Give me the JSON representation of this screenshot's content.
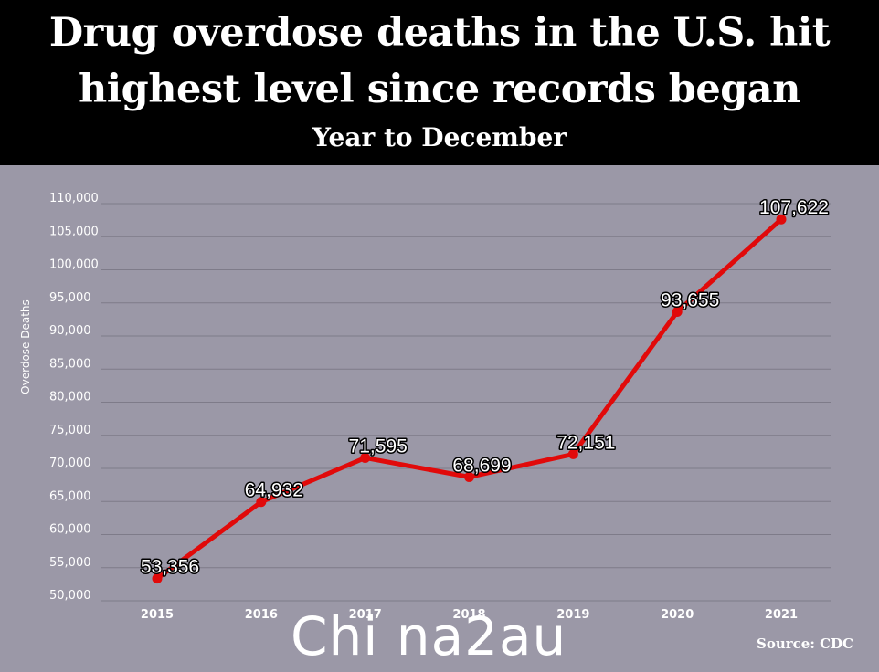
{
  "header": {
    "title_line1": "Drug overdose deaths in the U.S. hit",
    "title_line2": "highest level since records began",
    "subtitle": "Year to December"
  },
  "chart_data": {
    "type": "line",
    "x": [
      "2015",
      "2016",
      "2017",
      "2018",
      "2019",
      "2020",
      "2021"
    ],
    "series": [
      {
        "values": [
          53356,
          64932,
          71595,
          68699,
          72151,
          93655,
          107622
        ],
        "labels": [
          "53,356",
          "64,932",
          "71,595",
          "68,699",
          "72,151",
          "93,655",
          "107,622"
        ]
      }
    ],
    "ylabel": "Overdose Deaths",
    "xlabel": "",
    "ylim": [
      50000,
      110000
    ],
    "yticks": [
      50000,
      55000,
      60000,
      65000,
      70000,
      75000,
      80000,
      85000,
      90000,
      95000,
      100000,
      105000,
      110000
    ],
    "ytick_labels": [
      "50,000",
      "55,000",
      "60,000",
      "65,000",
      "70,000",
      "75,000",
      "80,000",
      "85,000",
      "90,000",
      "95,000",
      "100,000",
      "105,000",
      "110,000"
    ],
    "grid": true,
    "line_color": "#e10a0a",
    "background": "#9b98a7",
    "gridline_color": "#7e7b89"
  },
  "footer": {
    "source": "Source: CDC",
    "watermark": "Chi na2au"
  }
}
